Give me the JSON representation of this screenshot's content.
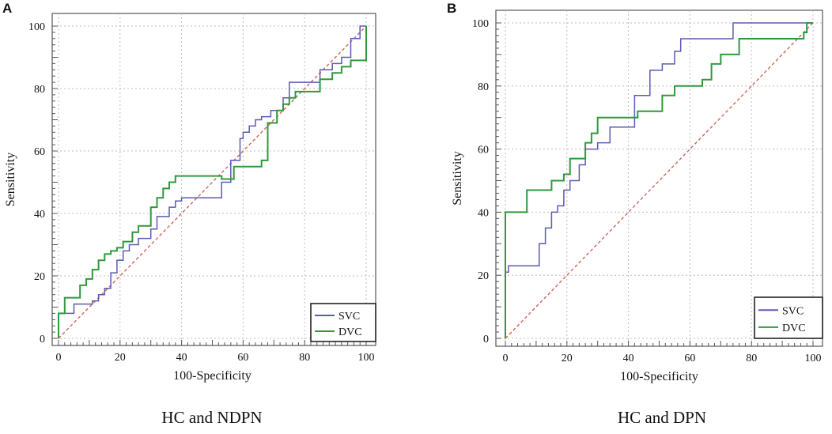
{
  "chart_data": [
    {
      "type": "line",
      "panel": "A",
      "caption": "HC and NDPN",
      "xlabel": "100-Specificity",
      "ylabel": "Sensitivity",
      "xlim": [
        0,
        100
      ],
      "ylim": [
        0,
        100
      ],
      "xticks": [
        "0",
        "20",
        "40",
        "60",
        "80",
        "100"
      ],
      "yticks": [
        "0",
        "20",
        "40",
        "60",
        "80",
        "100"
      ],
      "grid": true,
      "legend_position": "bottom-right",
      "reference_line": {
        "from": [
          0,
          0
        ],
        "to": [
          100,
          100
        ],
        "color": "#d0645a"
      },
      "series": [
        {
          "name": "SVC",
          "color": "#5b5bb0",
          "points": [
            [
              0,
              0
            ],
            [
              0,
              8
            ],
            [
              5,
              8
            ],
            [
              5,
              11
            ],
            [
              11,
              11
            ],
            [
              11,
              12
            ],
            [
              13,
              12
            ],
            [
              13,
              14
            ],
            [
              15,
              14
            ],
            [
              15,
              16
            ],
            [
              17,
              16
            ],
            [
              17,
              21
            ],
            [
              19,
              21
            ],
            [
              19,
              25
            ],
            [
              21,
              25
            ],
            [
              21,
              28
            ],
            [
              23,
              28
            ],
            [
              23,
              30
            ],
            [
              26,
              30
            ],
            [
              26,
              32
            ],
            [
              30,
              32
            ],
            [
              30,
              35
            ],
            [
              32,
              35
            ],
            [
              32,
              39
            ],
            [
              36,
              39
            ],
            [
              36,
              42
            ],
            [
              38,
              42
            ],
            [
              38,
              44
            ],
            [
              40,
              44
            ],
            [
              40,
              45
            ],
            [
              53,
              45
            ],
            [
              53,
              50
            ],
            [
              56,
              50
            ],
            [
              56,
              57
            ],
            [
              59,
              57
            ],
            [
              59,
              64
            ],
            [
              60,
              64
            ],
            [
              60,
              66
            ],
            [
              62,
              66
            ],
            [
              62,
              68
            ],
            [
              64,
              68
            ],
            [
              64,
              70
            ],
            [
              66,
              70
            ],
            [
              66,
              71
            ],
            [
              69,
              71
            ],
            [
              69,
              73
            ],
            [
              73,
              73
            ],
            [
              73,
              77
            ],
            [
              75,
              77
            ],
            [
              75,
              82
            ],
            [
              85,
              82
            ],
            [
              85,
              86
            ],
            [
              89,
              86
            ],
            [
              89,
              88
            ],
            [
              92,
              88
            ],
            [
              92,
              90
            ],
            [
              95,
              90
            ],
            [
              95,
              96
            ],
            [
              98,
              96
            ],
            [
              98,
              100
            ],
            [
              100,
              100
            ]
          ]
        },
        {
          "name": "DVC",
          "color": "#2e9a3c",
          "points": [
            [
              0,
              0
            ],
            [
              0,
              8
            ],
            [
              2,
              8
            ],
            [
              2,
              13
            ],
            [
              7,
              13
            ],
            [
              7,
              17
            ],
            [
              9,
              17
            ],
            [
              9,
              19
            ],
            [
              11,
              19
            ],
            [
              11,
              22
            ],
            [
              13,
              22
            ],
            [
              13,
              25
            ],
            [
              15,
              25
            ],
            [
              15,
              27
            ],
            [
              17,
              27
            ],
            [
              17,
              28
            ],
            [
              19,
              28
            ],
            [
              19,
              29
            ],
            [
              21,
              29
            ],
            [
              21,
              31
            ],
            [
              24,
              31
            ],
            [
              24,
              34
            ],
            [
              26,
              34
            ],
            [
              26,
              36
            ],
            [
              30,
              36
            ],
            [
              30,
              42
            ],
            [
              32,
              42
            ],
            [
              32,
              45
            ],
            [
              34,
              45
            ],
            [
              34,
              48
            ],
            [
              36,
              48
            ],
            [
              36,
              50
            ],
            [
              38,
              50
            ],
            [
              38,
              52
            ],
            [
              53,
              52
            ],
            [
              53,
              51
            ],
            [
              57,
              51
            ],
            [
              57,
              55
            ],
            [
              66,
              55
            ],
            [
              66,
              57
            ],
            [
              68,
              57
            ],
            [
              68,
              69
            ],
            [
              71,
              69
            ],
            [
              71,
              73
            ],
            [
              73,
              73
            ],
            [
              73,
              75
            ],
            [
              75,
              75
            ],
            [
              75,
              77
            ],
            [
              77,
              77
            ],
            [
              77,
              79
            ],
            [
              85,
              79
            ],
            [
              85,
              83
            ],
            [
              89,
              83
            ],
            [
              89,
              85
            ],
            [
              92,
              85
            ],
            [
              92,
              87
            ],
            [
              95,
              87
            ],
            [
              95,
              89
            ],
            [
              100,
              89
            ],
            [
              100,
              100
            ]
          ]
        }
      ]
    },
    {
      "type": "line",
      "panel": "B",
      "caption": "HC and DPN",
      "xlabel": "100-Specificity",
      "ylabel": "Sensitivity",
      "xlim": [
        0,
        100
      ],
      "ylim": [
        0,
        100
      ],
      "xticks": [
        "0",
        "20",
        "40",
        "60",
        "80",
        "100"
      ],
      "yticks": [
        "0",
        "20",
        "40",
        "60",
        "80",
        "100"
      ],
      "grid": true,
      "legend_position": "bottom-right",
      "reference_line": {
        "from": [
          0,
          0
        ],
        "to": [
          100,
          100
        ],
        "color": "#d0645a"
      },
      "series": [
        {
          "name": "SVC",
          "color": "#5b5bb0",
          "points": [
            [
              0,
              0
            ],
            [
              0,
              21
            ],
            [
              1,
              21
            ],
            [
              1,
              23
            ],
            [
              11,
              23
            ],
            [
              11,
              30
            ],
            [
              13,
              30
            ],
            [
              13,
              35
            ],
            [
              15,
              35
            ],
            [
              15,
              40
            ],
            [
              17,
              40
            ],
            [
              17,
              42
            ],
            [
              19,
              42
            ],
            [
              19,
              47
            ],
            [
              21,
              47
            ],
            [
              21,
              50
            ],
            [
              24,
              50
            ],
            [
              24,
              55
            ],
            [
              26,
              55
            ],
            [
              26,
              60
            ],
            [
              30,
              60
            ],
            [
              30,
              62
            ],
            [
              34,
              62
            ],
            [
              34,
              67
            ],
            [
              42,
              67
            ],
            [
              42,
              77
            ],
            [
              47,
              77
            ],
            [
              47,
              85
            ],
            [
              51,
              85
            ],
            [
              51,
              87
            ],
            [
              55,
              87
            ],
            [
              55,
              91
            ],
            [
              57,
              91
            ],
            [
              57,
              95
            ],
            [
              74,
              95
            ],
            [
              74,
              100
            ],
            [
              100,
              100
            ]
          ]
        },
        {
          "name": "DVC",
          "color": "#2e9a3c",
          "points": [
            [
              0,
              0
            ],
            [
              0,
              40
            ],
            [
              7,
              40
            ],
            [
              7,
              47
            ],
            [
              15,
              47
            ],
            [
              15,
              50
            ],
            [
              19,
              50
            ],
            [
              19,
              52
            ],
            [
              21,
              52
            ],
            [
              21,
              57
            ],
            [
              26,
              57
            ],
            [
              26,
              62
            ],
            [
              28,
              62
            ],
            [
              28,
              65
            ],
            [
              30,
              65
            ],
            [
              30,
              70
            ],
            [
              43,
              70
            ],
            [
              43,
              72
            ],
            [
              51,
              72
            ],
            [
              51,
              77
            ],
            [
              55,
              77
            ],
            [
              55,
              80
            ],
            [
              64,
              80
            ],
            [
              64,
              82
            ],
            [
              67,
              82
            ],
            [
              67,
              87
            ],
            [
              70,
              87
            ],
            [
              70,
              90
            ],
            [
              76,
              90
            ],
            [
              76,
              95
            ],
            [
              97,
              95
            ],
            [
              97,
              97
            ],
            [
              98,
              97
            ],
            [
              98,
              100
            ],
            [
              100,
              100
            ]
          ]
        }
      ]
    }
  ]
}
